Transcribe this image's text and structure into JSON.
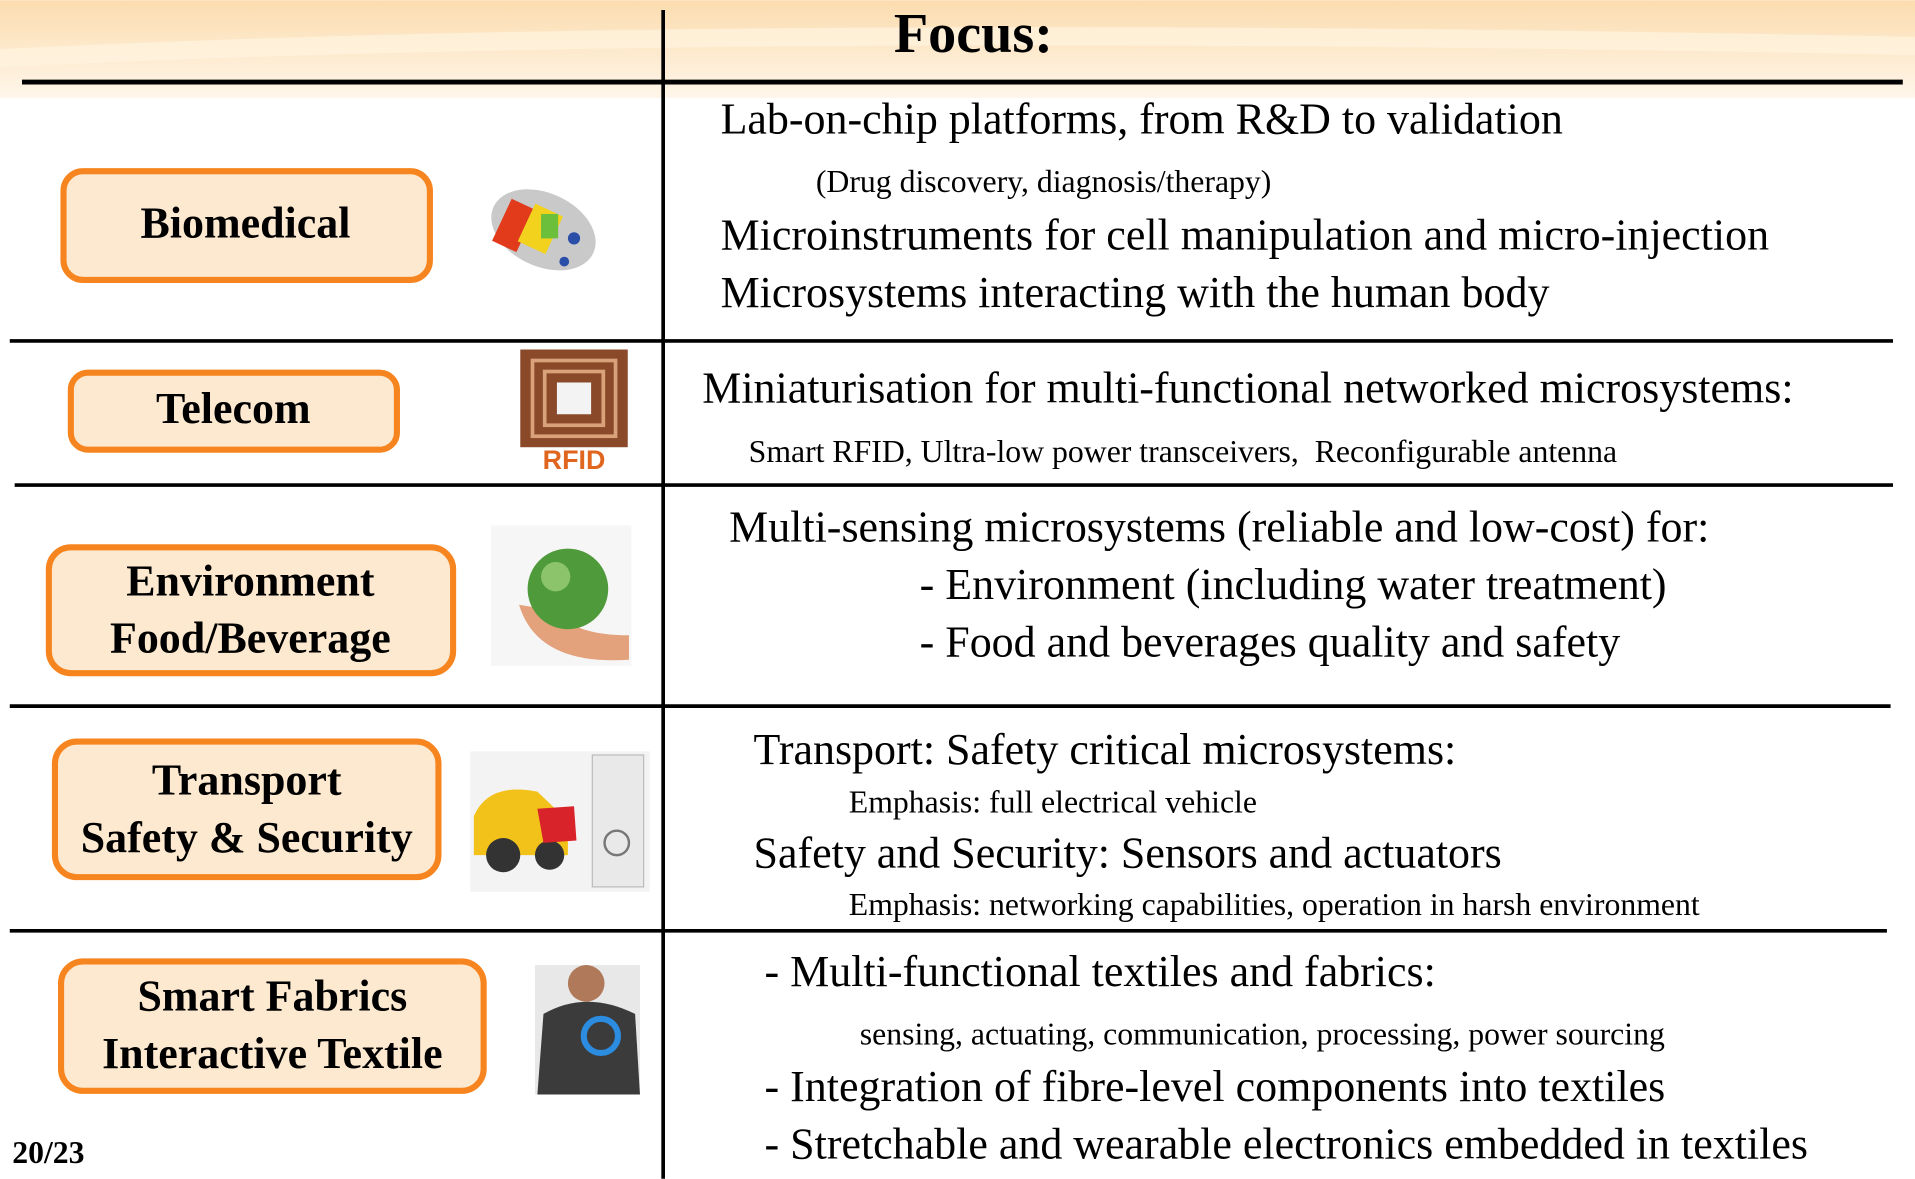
{
  "header": {
    "title": "Focus:"
  },
  "rows": [
    {
      "label": [
        "Biomedical"
      ],
      "focus": [
        "Lab-on-chip platforms, from R&D to validation",
        "(Drug discovery, diagnosis/therapy)",
        "Microinstruments for cell manipulation and micro-injection",
        "Microsystems interacting with the human body"
      ]
    },
    {
      "label": [
        "Telecom"
      ],
      "image_text": "RFID",
      "focus": [
        "Miniaturisation for multi-functional networked microsystems:",
        "Smart RFID, Ultra-low power transceivers,  Reconfigurable antenna"
      ]
    },
    {
      "label": [
        "Environment",
        "Food/Beverage"
      ],
      "focus": [
        "Multi-sensing microsystems (reliable and low-cost) for:",
        "- Environment (including water treatment)",
        "- Food and beverages quality and safety"
      ]
    },
    {
      "label": [
        "Transport",
        "Safety & Security"
      ],
      "focus": [
        "Transport: Safety critical microsystems:",
        "Emphasis: full electrical vehicle",
        "Safety and Security: Sensors and actuators",
        "Emphasis: networking capabilities, operation in harsh environment"
      ]
    },
    {
      "label": [
        "Smart Fabrics",
        "Interactive Textile"
      ],
      "focus": [
        "- Multi-functional textiles and fabrics:",
        "sensing, actuating, communication, processing, power sourcing",
        "- Integration of fibre-level components into textiles",
        "- Stretchable and wearable electronics embedded in textiles"
      ]
    }
  ],
  "page_number": "20/23"
}
